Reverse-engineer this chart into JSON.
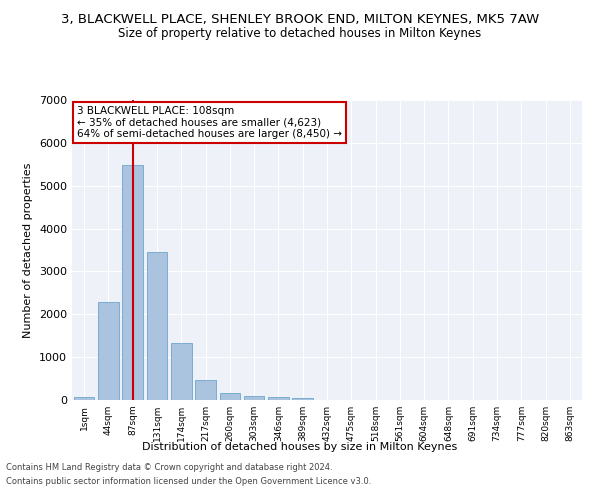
{
  "title": "3, BLACKWELL PLACE, SHENLEY BROOK END, MILTON KEYNES, MK5 7AW",
  "subtitle": "Size of property relative to detached houses in Milton Keynes",
  "xlabel": "Distribution of detached houses by size in Milton Keynes",
  "ylabel": "Number of detached properties",
  "footer_line1": "Contains HM Land Registry data © Crown copyright and database right 2024.",
  "footer_line2": "Contains public sector information licensed under the Open Government Licence v3.0.",
  "bar_labels": [
    "1sqm",
    "44sqm",
    "87sqm",
    "131sqm",
    "174sqm",
    "217sqm",
    "260sqm",
    "303sqm",
    "346sqm",
    "389sqm",
    "432sqm",
    "475sqm",
    "518sqm",
    "561sqm",
    "604sqm",
    "648sqm",
    "691sqm",
    "734sqm",
    "777sqm",
    "820sqm",
    "863sqm"
  ],
  "bar_values": [
    80,
    2280,
    5480,
    3450,
    1320,
    470,
    160,
    100,
    65,
    40,
    0,
    0,
    0,
    0,
    0,
    0,
    0,
    0,
    0,
    0,
    0
  ],
  "bar_color": "#aac4e0",
  "bar_edgecolor": "#7aadd4",
  "ylim": [
    0,
    7000
  ],
  "yticks": [
    0,
    1000,
    2000,
    3000,
    4000,
    5000,
    6000,
    7000
  ],
  "redline_x": 2,
  "annotation_title": "3 BLACKWELL PLACE: 108sqm",
  "annotation_line1": "← 35% of detached houses are smaller (4,623)",
  "annotation_line2": "64% of semi-detached houses are larger (8,450) →",
  "annotation_box_color": "#ffffff",
  "annotation_box_edgecolor": "#cc0000",
  "redline_color": "#cc0000",
  "background_color": "#eef2f8",
  "grid_color": "#ffffff",
  "title_fontsize": 9.5,
  "subtitle_fontsize": 8.5
}
